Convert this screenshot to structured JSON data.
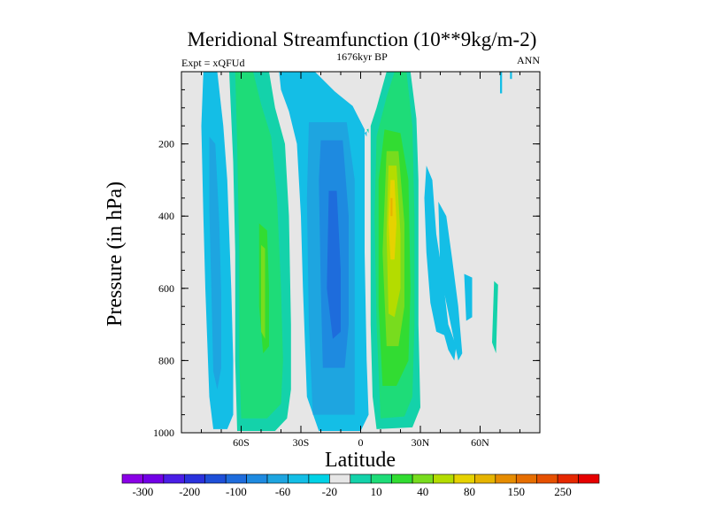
{
  "chart_data": {
    "type": "contour",
    "title": "Meridional Streamfunction (10**9kg/m-2)",
    "subtitle": "1676kyr BP",
    "left_label": "Expt = xQFUd",
    "right_label": "ANN",
    "xlabel": "Latitude",
    "ylabel": "Pressure (in hPa)",
    "xlim": [
      -90,
      90
    ],
    "ylim": [
      1000,
      0
    ],
    "x_ticks": [
      {
        "value": -60,
        "label": "60S"
      },
      {
        "value": -30,
        "label": "30S"
      },
      {
        "value": 0,
        "label": "0"
      },
      {
        "value": 30,
        "label": "30N"
      },
      {
        "value": 60,
        "label": "60N"
      }
    ],
    "y_ticks": [
      {
        "value": 200,
        "label": "200"
      },
      {
        "value": 400,
        "label": "400"
      },
      {
        "value": 600,
        "label": "600"
      },
      {
        "value": 800,
        "label": "800"
      },
      {
        "value": 1000,
        "label": "1000"
      }
    ],
    "colorbar": {
      "labels": [
        "-300",
        "-200",
        "-100",
        "-60",
        "-20",
        "10",
        "40",
        "80",
        "150",
        "250"
      ],
      "colors": [
        "#8a00e6",
        "#7200e6",
        "#4a1ee6",
        "#2a32dc",
        "#1e4fd8",
        "#1e6cdc",
        "#1e8ae0",
        "#1ea5e0",
        "#14bee6",
        "#00d2e6",
        "#e6e6e6",
        "#14d2aa",
        "#1edc78",
        "#32dc32",
        "#78dc1e",
        "#b4dc00",
        "#e6d200",
        "#e6b400",
        "#e68c00",
        "#e66e00",
        "#e65000",
        "#e62800",
        "#e60000"
      ]
    },
    "cells": [
      {
        "level": "-20",
        "color": "#14bee6",
        "points": [
          [
            -79,
            0
          ],
          [
            -72,
            0
          ],
          [
            -69,
            150
          ],
          [
            -67,
            300
          ],
          [
            -65,
            600
          ],
          [
            -64,
            800
          ],
          [
            -64,
            950
          ],
          [
            -67,
            990
          ],
          [
            -74,
            990
          ],
          [
            -76,
            900
          ],
          [
            -78,
            600
          ],
          [
            -79,
            400
          ],
          [
            -80,
            150
          ]
        ]
      },
      {
        "level": "-60",
        "color": "#1ea5e0",
        "points": [
          [
            -76,
            180
          ],
          [
            -73,
            200
          ],
          [
            -71,
            420
          ],
          [
            -70,
            620
          ],
          [
            -70,
            820
          ],
          [
            -72,
            880
          ],
          [
            -74,
            830
          ],
          [
            -75,
            600
          ],
          [
            -76,
            380
          ]
        ]
      },
      {
        "level": "-20",
        "color": "#14bee6",
        "points": [
          [
            -41,
            0
          ],
          [
            -23,
            0
          ],
          [
            -13,
            55
          ],
          [
            -4,
            95
          ],
          [
            2,
            160
          ],
          [
            2,
            500
          ],
          [
            3,
            800
          ],
          [
            4,
            950
          ],
          [
            0,
            995
          ],
          [
            -21,
            995
          ],
          [
            -27,
            900
          ],
          [
            -29,
            600
          ],
          [
            -30,
            400
          ],
          [
            -32,
            200
          ],
          [
            -36,
            110
          ],
          [
            -40,
            50
          ]
        ]
      },
      {
        "level": "-20",
        "color": "#14bee6",
        "points": [
          [
            2,
            170
          ],
          [
            3,
            165
          ],
          [
            3,
            180
          ]
        ]
      },
      {
        "level": "-60",
        "color": "#1ea5e0",
        "points": [
          [
            -26,
            140
          ],
          [
            -7,
            140
          ],
          [
            -3,
            300
          ],
          [
            -3,
            800
          ],
          [
            -3,
            950
          ],
          [
            -24,
            950
          ],
          [
            -26,
            700
          ],
          [
            -27,
            350
          ]
        ]
      },
      {
        "level": "-100",
        "color": "#1e8ae0",
        "points": [
          [
            -20,
            190
          ],
          [
            -9,
            190
          ],
          [
            -6,
            400
          ],
          [
            -6,
            700
          ],
          [
            -8,
            820
          ],
          [
            -19,
            820
          ],
          [
            -20,
            600
          ],
          [
            -21,
            300
          ]
        ]
      },
      {
        "level": "-100",
        "color": "#1e6cdc",
        "points": [
          [
            -16,
            330
          ],
          [
            -12,
            330
          ],
          [
            -10,
            550
          ],
          [
            -10,
            720
          ],
          [
            -14,
            740
          ],
          [
            -17,
            600
          ]
        ]
      },
      {
        "level": "10",
        "color": "#14d2aa",
        "points": [
          [
            -66,
            0
          ],
          [
            -46,
            0
          ],
          [
            -43,
            100
          ],
          [
            -38,
            200
          ],
          [
            -36,
            400
          ],
          [
            -35,
            700
          ],
          [
            -35,
            880
          ],
          [
            -37,
            960
          ],
          [
            -43,
            995
          ],
          [
            -62,
            995
          ],
          [
            -63,
            800
          ],
          [
            -63,
            500
          ],
          [
            -64,
            250
          ]
        ]
      },
      {
        "level": "40",
        "color": "#1edc78",
        "points": [
          [
            -63,
            0
          ],
          [
            -54,
            0
          ],
          [
            -50,
            90
          ],
          [
            -45,
            180
          ],
          [
            -42,
            350
          ],
          [
            -40,
            600
          ],
          [
            -39,
            800
          ],
          [
            -40,
            920
          ],
          [
            -47,
            960
          ],
          [
            -60,
            960
          ],
          [
            -61,
            800
          ],
          [
            -61,
            500
          ],
          [
            -62,
            200
          ]
        ]
      },
      {
        "level": "40",
        "color": "#32dc32",
        "points": [
          [
            -51,
            420
          ],
          [
            -47,
            440
          ],
          [
            -46,
            600
          ],
          [
            -46,
            760
          ],
          [
            -49,
            780
          ],
          [
            -51,
            650
          ]
        ]
      },
      {
        "level": "40",
        "color": "#78dc1e",
        "points": [
          [
            -50,
            480
          ],
          [
            -48,
            490
          ],
          [
            -48,
            740
          ],
          [
            -50,
            720
          ]
        ]
      },
      {
        "level": "10",
        "color": "#14d2aa",
        "points": [
          [
            13,
            0
          ],
          [
            25,
            0
          ],
          [
            28,
            130
          ],
          [
            29,
            300
          ],
          [
            29,
            700
          ],
          [
            30,
            930
          ],
          [
            26,
            985
          ],
          [
            8,
            990
          ],
          [
            6,
            900
          ],
          [
            5,
            700
          ],
          [
            5,
            400
          ],
          [
            5,
            150
          ],
          [
            8,
            100
          ]
        ]
      },
      {
        "level": "40",
        "color": "#1edc78",
        "points": [
          [
            17,
            0
          ],
          [
            23,
            0
          ],
          [
            26,
            150
          ],
          [
            27,
            400
          ],
          [
            27,
            700
          ],
          [
            26,
            900
          ],
          [
            22,
            955
          ],
          [
            10,
            960
          ],
          [
            8,
            700
          ],
          [
            7,
            400
          ],
          [
            8,
            180
          ],
          [
            13,
            70
          ]
        ]
      },
      {
        "level": "40",
        "color": "#32dc32",
        "points": [
          [
            12,
            160
          ],
          [
            20,
            170
          ],
          [
            24,
            300
          ],
          [
            25,
            600
          ],
          [
            24,
            800
          ],
          [
            18,
            870
          ],
          [
            11,
            870
          ],
          [
            9,
            650
          ],
          [
            9,
            300
          ]
        ]
      },
      {
        "level": "80",
        "color": "#78dc1e",
        "points": [
          [
            13,
            220
          ],
          [
            19,
            220
          ],
          [
            22,
            420
          ],
          [
            22,
            650
          ],
          [
            19,
            760
          ],
          [
            13,
            760
          ],
          [
            11,
            500
          ]
        ]
      },
      {
        "level": "80",
        "color": "#b4dc00",
        "points": [
          [
            14,
            260
          ],
          [
            18,
            260
          ],
          [
            20,
            450
          ],
          [
            20,
            600
          ],
          [
            17,
            680
          ],
          [
            14,
            670
          ],
          [
            13,
            450
          ]
        ]
      },
      {
        "level": "150",
        "color": "#e6d200",
        "points": [
          [
            15,
            300
          ],
          [
            17,
            300
          ],
          [
            18,
            420
          ],
          [
            17,
            520
          ],
          [
            15,
            520
          ],
          [
            14,
            420
          ]
        ]
      },
      {
        "level": "150",
        "color": "#e6b400",
        "points": [
          [
            15,
            350
          ],
          [
            16,
            350
          ],
          [
            16,
            400
          ],
          [
            15,
            400
          ]
        ]
      },
      {
        "level": "10",
        "color": "#14d2aa",
        "points": [
          [
            3,
            160
          ],
          [
            4,
            158
          ],
          [
            4,
            170
          ]
        ]
      },
      {
        "level": "-20",
        "color": "#14bee6",
        "points": [
          [
            33,
            260
          ],
          [
            36,
            300
          ],
          [
            38,
            450
          ],
          [
            41,
            560
          ],
          [
            44,
            700
          ],
          [
            48,
            760
          ],
          [
            47,
            800
          ],
          [
            44,
            770
          ],
          [
            42,
            730
          ],
          [
            38,
            720
          ],
          [
            35,
            640
          ],
          [
            33,
            500
          ],
          [
            32,
            350
          ]
        ]
      },
      {
        "level": "-20",
        "color": "#14bee6",
        "points": [
          [
            39,
            360
          ],
          [
            43,
            400
          ],
          [
            46,
            520
          ],
          [
            49,
            650
          ],
          [
            51,
            780
          ],
          [
            49,
            800
          ],
          [
            46,
            720
          ],
          [
            43,
            640
          ],
          [
            40,
            560
          ]
        ]
      },
      {
        "level": "-20",
        "color": "#14bee6",
        "points": [
          [
            52,
            560
          ],
          [
            56,
            570
          ],
          [
            56,
            680
          ],
          [
            53,
            690
          ]
        ]
      },
      {
        "level": "10",
        "color": "#14d2aa",
        "points": [
          [
            67,
            580
          ],
          [
            69,
            590
          ],
          [
            68,
            780
          ],
          [
            66,
            750
          ]
        ]
      },
      {
        "level": "-20",
        "color": "#14bee6",
        "points": [
          [
            70,
            0
          ],
          [
            71,
            0
          ],
          [
            71,
            60
          ],
          [
            70,
            60
          ]
        ]
      },
      {
        "level": "-20",
        "color": "#14bee6",
        "points": [
          [
            75,
            0
          ],
          [
            76,
            0
          ],
          [
            76,
            20
          ],
          [
            75,
            20
          ]
        ]
      }
    ]
  }
}
